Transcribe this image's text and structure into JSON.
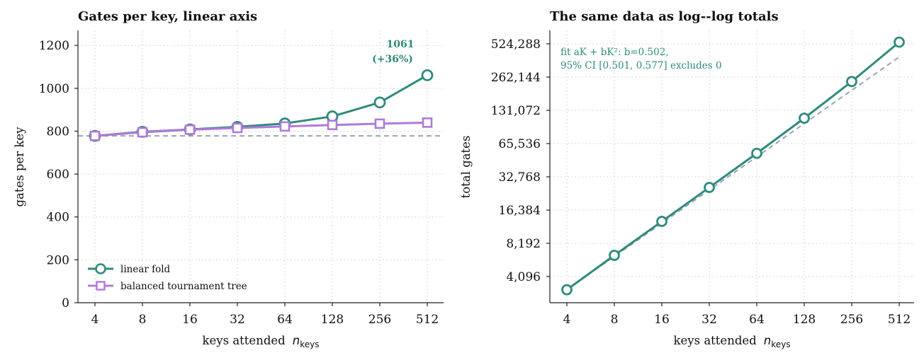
{
  "chart_data": [
    {
      "type": "line",
      "title": "Gates per key, linear axis",
      "xlabel": "keys attended",
      "xlabel_symbol": "n",
      "xlabel_subscript": "keys",
      "ylabel": "gates per key",
      "categories": [
        "4",
        "8",
        "16",
        "32",
        "64",
        "128",
        "256",
        "512"
      ],
      "ylim": [
        0,
        1270
      ],
      "yticks": [
        0,
        200,
        400,
        600,
        800,
        1000,
        1200
      ],
      "grid": true,
      "legend_position": "lower-left",
      "reference_line": {
        "y": 778,
        "style": "dashed",
        "color": "#9aa5b4"
      },
      "series": [
        {
          "name": "linear fold",
          "marker": "circle",
          "color": "#2e8b7c",
          "values": [
            778,
            797,
            808,
            820,
            836,
            869,
            934,
            1061
          ]
        },
        {
          "name": "balanced tournament tree",
          "marker": "square",
          "color": "#b07ad8",
          "values": [
            778,
            795,
            807,
            815,
            822,
            829,
            835,
            840
          ]
        }
      ],
      "annotation": {
        "line1": "1061",
        "line2": "(+36%)",
        "color": "#2e8b7c"
      }
    },
    {
      "type": "line",
      "title": "The same data as log--log totals",
      "xlabel": "keys attended",
      "xlabel_symbol": "n",
      "xlabel_subscript": "keys",
      "ylabel": "total gates",
      "categories": [
        "4",
        "8",
        "16",
        "32",
        "64",
        "128",
        "256",
        "512"
      ],
      "y_scale": "log2",
      "yticks": [
        "4,096",
        "8,192",
        "16,384",
        "32,768",
        "65,536",
        "131,072",
        "262,144",
        "524,288"
      ],
      "grid": true,
      "series": [
        {
          "name": "",
          "marker": "circle",
          "color": "#2e8b7c",
          "values": [
            3112,
            6376,
            12928,
            26240,
            53504,
            111232,
            239104,
            543232
          ]
        }
      ],
      "fit_line": {
        "style": "dashed",
        "color": "#9aa5b4",
        "values": [
          3112,
          6224,
          12448,
          24896,
          49792,
          99584,
          199168,
          398336
        ]
      },
      "fit_annotation": {
        "line1": "fit aK + bK²: b=0.502,",
        "line2": "95% CI [0.501, 0.577] excludes 0",
        "color": "#2e8b7c"
      }
    }
  ]
}
